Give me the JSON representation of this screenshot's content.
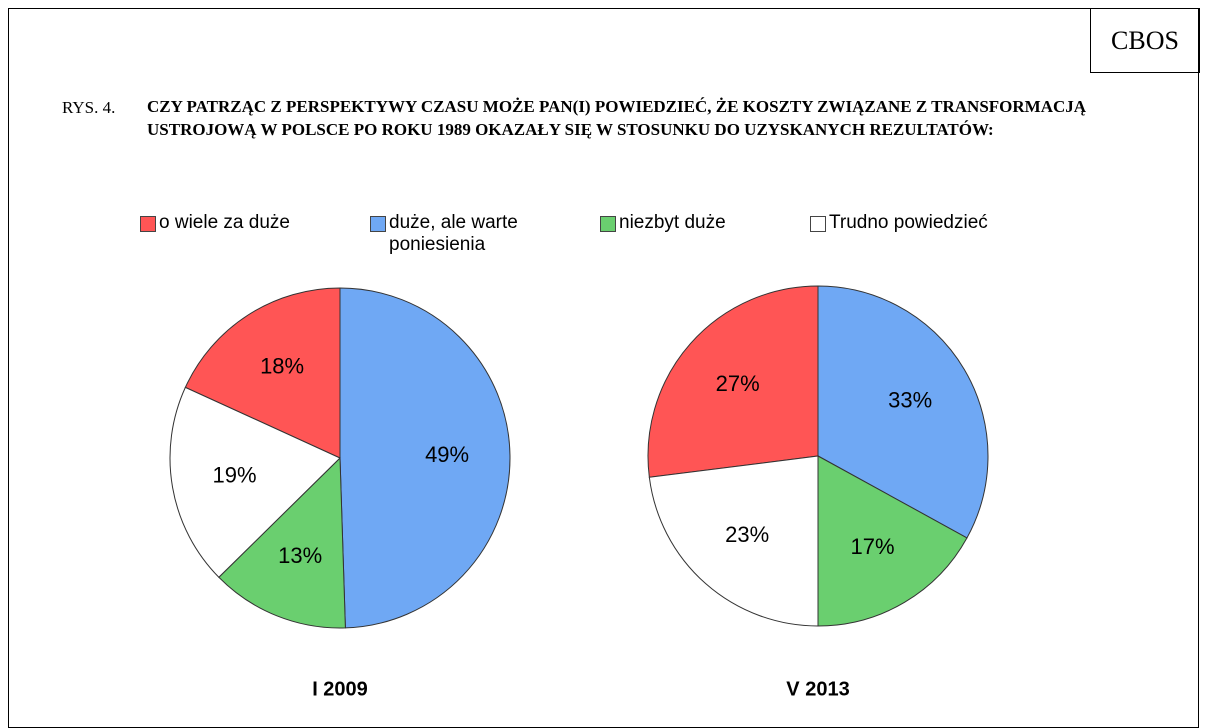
{
  "source": "CBOS",
  "figure_label": "RYS. 4.",
  "title": "CZY PATRZĄC Z PERSPEKTYWY CZASU MOŻE PAN(I) POWIEDZIEĆ, ŻE KOSZTY ZWIĄZANE Z TRANSFORMACJĄ USTROJOWĄ W POLSCE PO ROKU 1989 OKAZAŁY SIĘ W STOSUNKU DO UZYSKANYCH REZULTATÓW:",
  "legend": [
    {
      "name": "o wiele za duże",
      "color": "#ff5555"
    },
    {
      "name": "duże, ale warte poniesienia",
      "color": "#6fa8f4"
    },
    {
      "name": "niezbyt duże",
      "color": "#6acf6f"
    },
    {
      "name": "Trudno powiedzieć",
      "color": "#ffffff"
    }
  ],
  "chart_data": [
    {
      "type": "pie",
      "title": "I 2009",
      "values": [
        18,
        49,
        13,
        19
      ],
      "value_labels": [
        "18%",
        "49%",
        "13%",
        "19%"
      ]
    },
    {
      "type": "pie",
      "title": "V 2013",
      "values": [
        27,
        33,
        17,
        23
      ],
      "value_labels": [
        "27%",
        "33%",
        "17%",
        "23%"
      ]
    }
  ]
}
